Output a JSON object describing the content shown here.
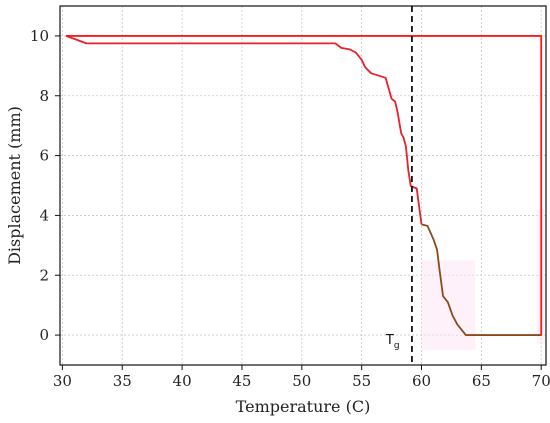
{
  "chart_data": {
    "type": "line",
    "title": "",
    "xlabel": "Temperature (C)",
    "ylabel": "Displacement (mm)",
    "xlim": [
      29.8,
      70.4
    ],
    "ylim": [
      -1.0,
      11.0
    ],
    "xticks": [
      30,
      35,
      40,
      45,
      50,
      55,
      60,
      65,
      70
    ],
    "yticks": [
      0,
      2,
      4,
      6,
      8,
      10
    ],
    "grid": true,
    "legend": "none",
    "colors": {
      "outer": "#ff1a1a",
      "inner": "#e8202a",
      "inner_tail": "#8b4a1a",
      "shade": "#ffe0f4",
      "vline": "#111111",
      "grid": "#c8c8c8"
    },
    "series": [
      {
        "x": [
          30.3,
          70.0,
          70.0,
          69.9
        ],
        "y": [
          10.0,
          10.0,
          0.0,
          0.0
        ]
      },
      {
        "x": [
          30.3,
          31.0,
          32.0,
          35.0,
          40.0,
          45.0,
          50.0,
          52.8,
          53.3,
          54.0,
          54.5,
          55.0,
          55.3,
          55.8,
          56.6,
          57.0,
          57.5,
          57.8,
          58.0,
          58.3,
          58.5,
          58.7,
          58.9,
          59.1,
          59.3,
          59.6,
          60.0,
          60.5,
          61.0,
          61.3,
          61.5,
          61.8,
          62.2,
          62.6,
          63.0,
          63.7,
          65.0,
          67.5,
          70.0
        ],
        "y": [
          10.0,
          9.9,
          9.75,
          9.75,
          9.75,
          9.75,
          9.75,
          9.75,
          9.6,
          9.55,
          9.45,
          9.2,
          8.95,
          8.75,
          8.65,
          8.6,
          7.9,
          7.8,
          7.45,
          6.75,
          6.6,
          6.3,
          5.5,
          4.98,
          4.95,
          4.9,
          3.7,
          3.65,
          3.2,
          2.85,
          2.2,
          1.3,
          1.1,
          0.65,
          0.35,
          0.0,
          0.0,
          0.0,
          0.0
        ]
      }
    ],
    "brown_from_x": 60.0,
    "vline": {
      "x": 59.2,
      "style": "dashed"
    },
    "annotation": {
      "x": 57.5,
      "y": -0.3,
      "text": "T",
      "subscript": "g"
    }
  }
}
